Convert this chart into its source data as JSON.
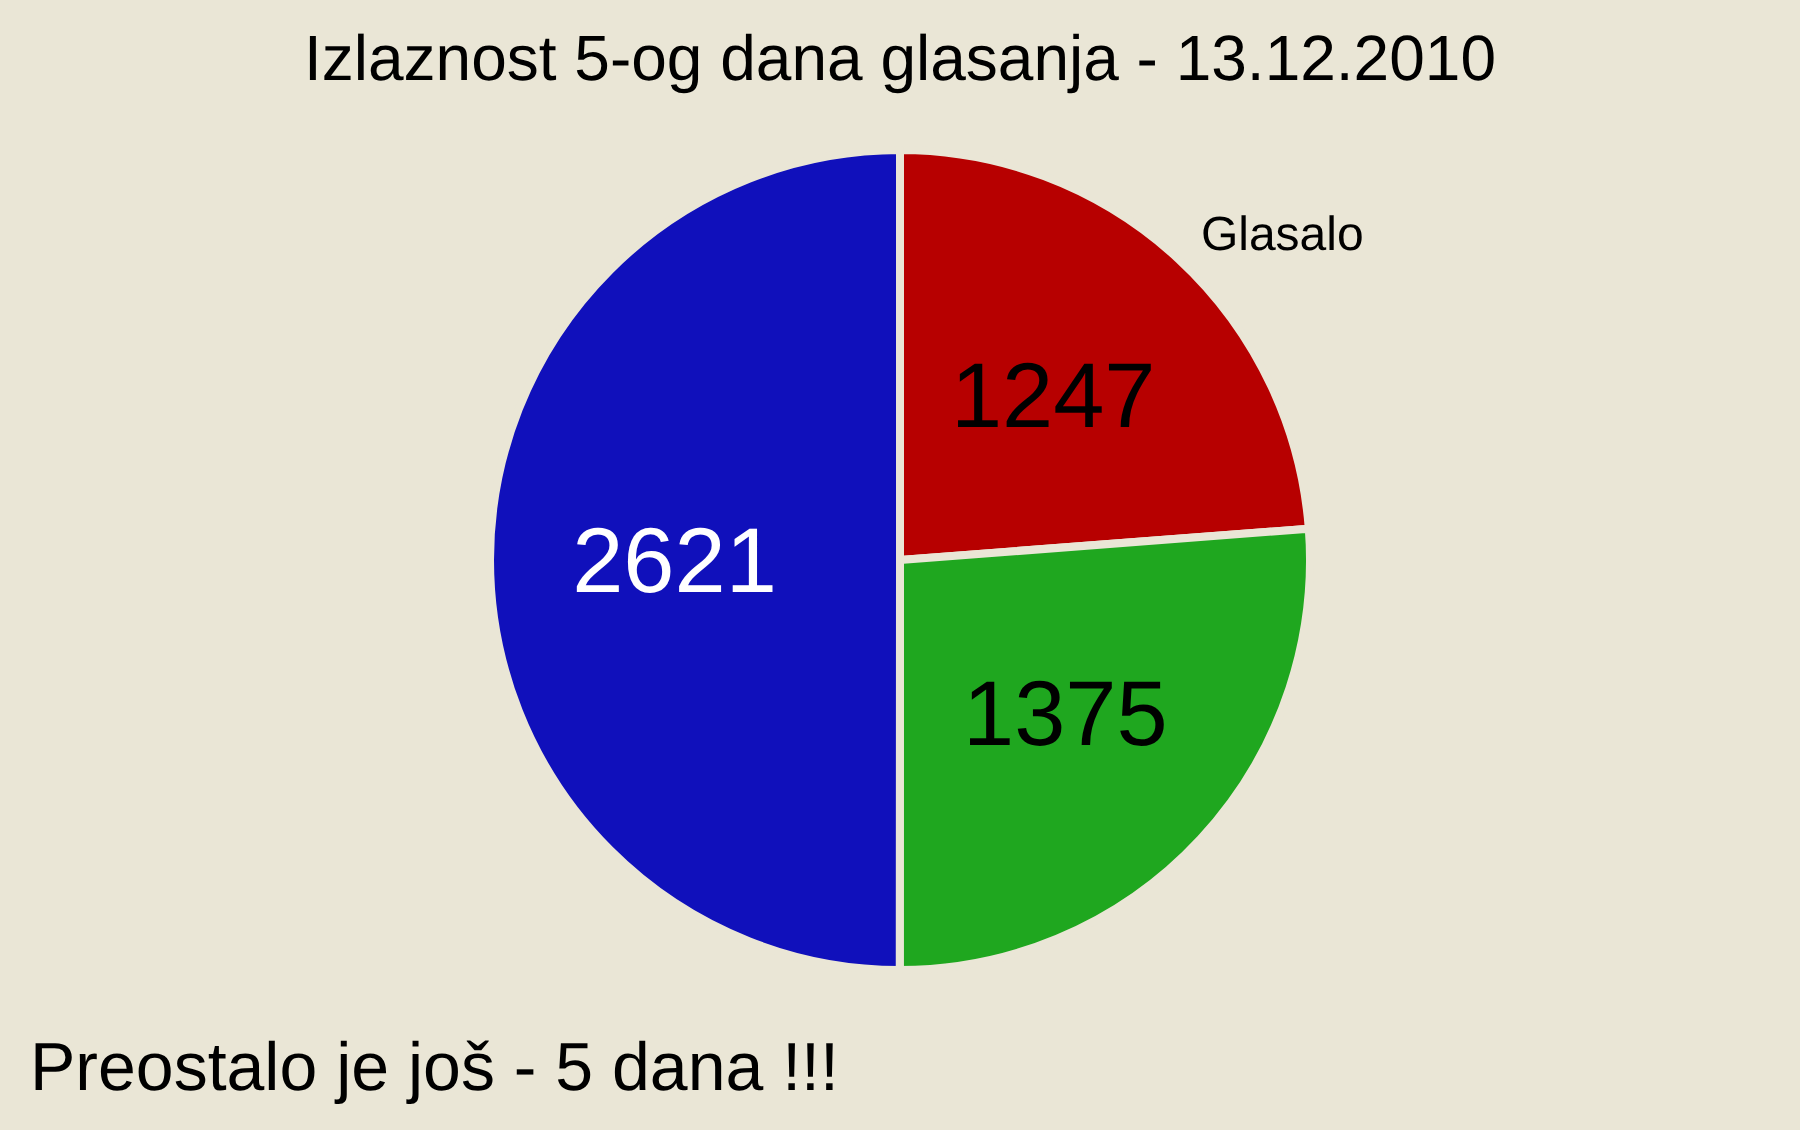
{
  "chart_data": {
    "type": "pie",
    "title": "Izlaznost 5-og dana glasanja - 13.12.2010",
    "categories": [
      "Glasalo",
      null,
      null
    ],
    "values": [
      1247,
      1375,
      2621
    ],
    "colors": [
      "#b70000",
      "#1fa71f",
      "#1010bb"
    ],
    "data_labels": true,
    "annotations": [
      "Preostalo je još - 5 dana !!!"
    ]
  }
}
